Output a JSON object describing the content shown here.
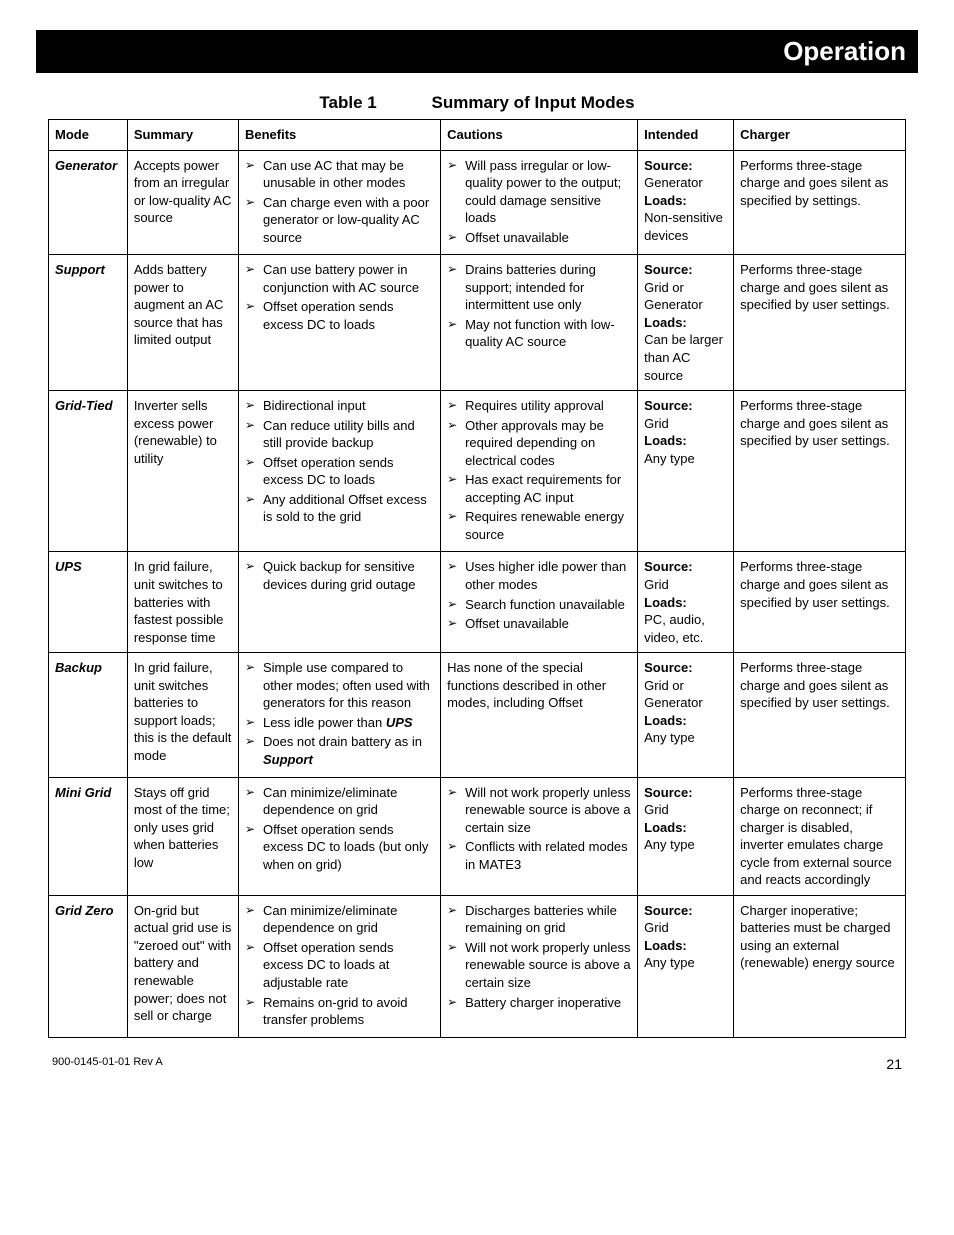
{
  "header": {
    "title": "Operation"
  },
  "caption": {
    "label": "Table 1",
    "title": "Summary of Input Modes"
  },
  "columns": [
    "Mode",
    "Summary",
    "Benefits",
    "Cautions",
    "Intended",
    "Charger"
  ],
  "rows": [
    {
      "mode": "Generator",
      "summary": "Accepts power from an irregular or low-quality AC source",
      "benefits": [
        "Can use AC that may be unusable in other modes",
        "Can charge even with a poor generator or low-quality AC source"
      ],
      "cautions": [
        "Will pass irregular or low-quality power to the output; could damage sensitive loads",
        "Offset unavailable"
      ],
      "intended_source": "Generator",
      "intended_loads": "Non-sensitive devices",
      "charger": "Performs three-stage charge and goes silent as specified by settings."
    },
    {
      "mode": "Support",
      "summary": "Adds battery power to augment an AC source that has limited output",
      "benefits": [
        "Can use battery power in conjunction with AC source",
        "Offset operation sends excess DC to loads"
      ],
      "cautions": [
        "Drains batteries during support; intended for intermittent use only",
        "May not function with low-quality AC source"
      ],
      "intended_source": "Grid or Generator",
      "intended_loads": "Can be larger than AC source",
      "charger": "Performs three-stage charge and goes silent as specified by user settings."
    },
    {
      "mode": "Grid-Tied",
      "summary": "Inverter sells excess power (renewable) to utility",
      "benefits": [
        "Bidirectional input",
        "Can reduce utility bills and still provide backup",
        "Offset operation sends excess DC to loads",
        "Any additional Offset excess is sold to the grid"
      ],
      "cautions": [
        "Requires utility approval",
        "Other approvals may be required depending on electrical codes",
        "Has exact requirements for accepting AC input",
        "Requires renewable energy source"
      ],
      "intended_source": "Grid",
      "intended_loads": "Any type",
      "charger": "Performs three-stage charge and goes silent as specified by user settings."
    },
    {
      "mode": "UPS",
      "summary": "In grid failure, unit switches to batteries with fastest possible response time",
      "benefits": [
        "Quick backup for sensitive devices during grid outage"
      ],
      "cautions": [
        "Uses higher idle power than other modes",
        "Search function unavailable",
        "Offset unavailable"
      ],
      "intended_source": "Grid",
      "intended_loads": "PC, audio, video, etc.",
      "charger": "Performs three-stage charge and goes silent as specified by user settings."
    },
    {
      "mode": "Backup",
      "summary": "In grid failure, unit switches batteries to support loads; this is the default mode",
      "benefits_special": [
        {
          "text": "Simple use compared to other modes; often used with generators for this reason"
        },
        {
          "text_pre": "Less idle power than ",
          "bold": "UPS"
        },
        {
          "text_pre": "Does not drain battery as in ",
          "bold": "Support"
        }
      ],
      "cautions_plain": "Has none of the special functions described in other modes, including Offset",
      "intended_source": "Grid or Generator",
      "intended_loads": "Any type",
      "charger": "Performs three-stage charge and goes silent as specified by user settings."
    },
    {
      "mode": "Mini Grid",
      "summary": "Stays off grid most of the time; only uses grid when batteries low",
      "benefits": [
        "Can minimize/eliminate dependence on grid",
        "Offset operation sends excess DC to loads (but only when on grid)"
      ],
      "cautions": [
        "Will not work properly unless renewable source is above a certain size",
        "Conflicts with related modes in MATE3"
      ],
      "intended_source": "Grid",
      "intended_loads": "Any type",
      "charger": "Performs three-stage charge on reconnect; if charger is disabled, inverter emulates charge cycle from external source and reacts accordingly"
    },
    {
      "mode": "Grid Zero",
      "summary": "On-grid but actual grid use is \"zeroed out\" with battery and renewable power; does not sell or charge",
      "benefits": [
        "Can minimize/eliminate dependence on grid",
        "Offset operation sends excess DC to loads at adjustable rate",
        "Remains on-grid to avoid transfer problems"
      ],
      "cautions": [
        "Discharges batteries while remaining on grid",
        "Will not work properly unless renewable source is above a certain size",
        "Battery charger inoperative"
      ],
      "intended_source": "Grid",
      "intended_loads": "Any type",
      "charger": "Charger inoperative; batteries must be charged using an external (renewable) energy source"
    }
  ],
  "intended_labels": {
    "source": "Source:",
    "loads": "Loads:"
  },
  "footer": {
    "rev": "900-0145-01-01 Rev A",
    "page": "21"
  }
}
